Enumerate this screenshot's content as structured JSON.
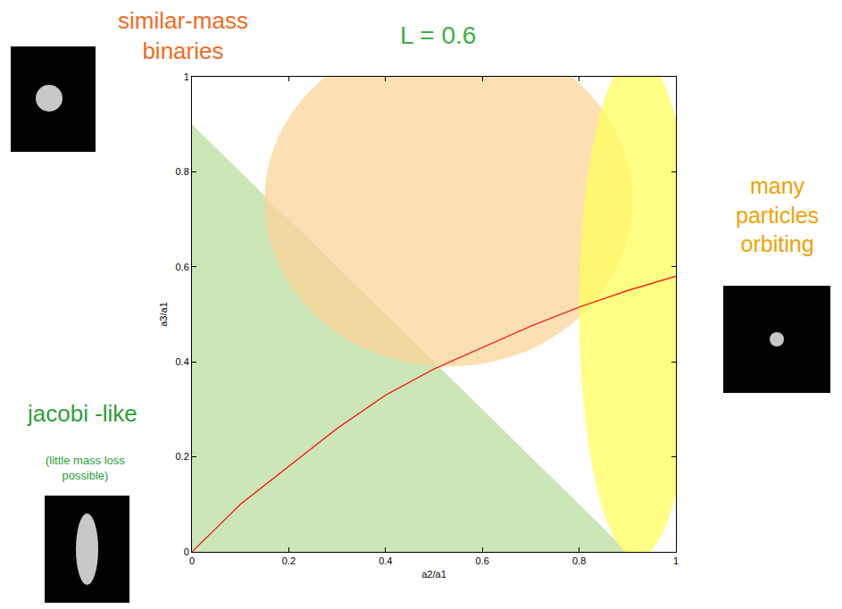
{
  "chart_data": {
    "type": "line",
    "x": [
      0,
      0.1,
      0.15,
      0.2,
      0.3,
      0.4,
      0.5,
      0.6,
      0.7,
      0.8,
      0.9,
      1
    ],
    "values": [
      0,
      0.1,
      0.14,
      0.18,
      0.26,
      0.33,
      0.385,
      0.43,
      0.475,
      0.515,
      0.55,
      0.58
    ],
    "color": "#ff0000",
    "line_style": "solid",
    "xlabel": "a2/a1",
    "ylabel": "a3/a1",
    "xlim": [
      0,
      1
    ],
    "ylim": [
      0,
      1
    ],
    "xticks": [
      0,
      0.2,
      0.4,
      0.6,
      0.8,
      1
    ],
    "yticks": [
      0,
      0.2,
      0.4,
      0.6,
      0.8,
      1
    ],
    "grid": false,
    "regions": [
      {
        "label": "jacobi -like",
        "note": "(little mass loss possible)",
        "label_color": "#2e9e3a",
        "shape": "polygon",
        "color": "#bcdda0",
        "points": [
          [
            0,
            0.9
          ],
          [
            0,
            0
          ],
          [
            0.9,
            0
          ]
        ]
      },
      {
        "label": "similar-mass binaries",
        "label_color": "#f26a1f",
        "shape": "ellipse",
        "color": "#fbd49a",
        "x": [
          0.15,
          0.91
        ],
        "y": [
          0.39,
          1.09
        ]
      },
      {
        "label": "many particles orbiting",
        "label_color": "#f0a202",
        "shape": "ellipse",
        "color": "#ffff5c",
        "x": [
          0.8,
          1.04
        ],
        "y": [
          -0.013,
          1.045
        ]
      }
    ],
    "annotations": [
      {
        "text": "L = 0.6",
        "color": "#3cb043"
      }
    ]
  }
}
